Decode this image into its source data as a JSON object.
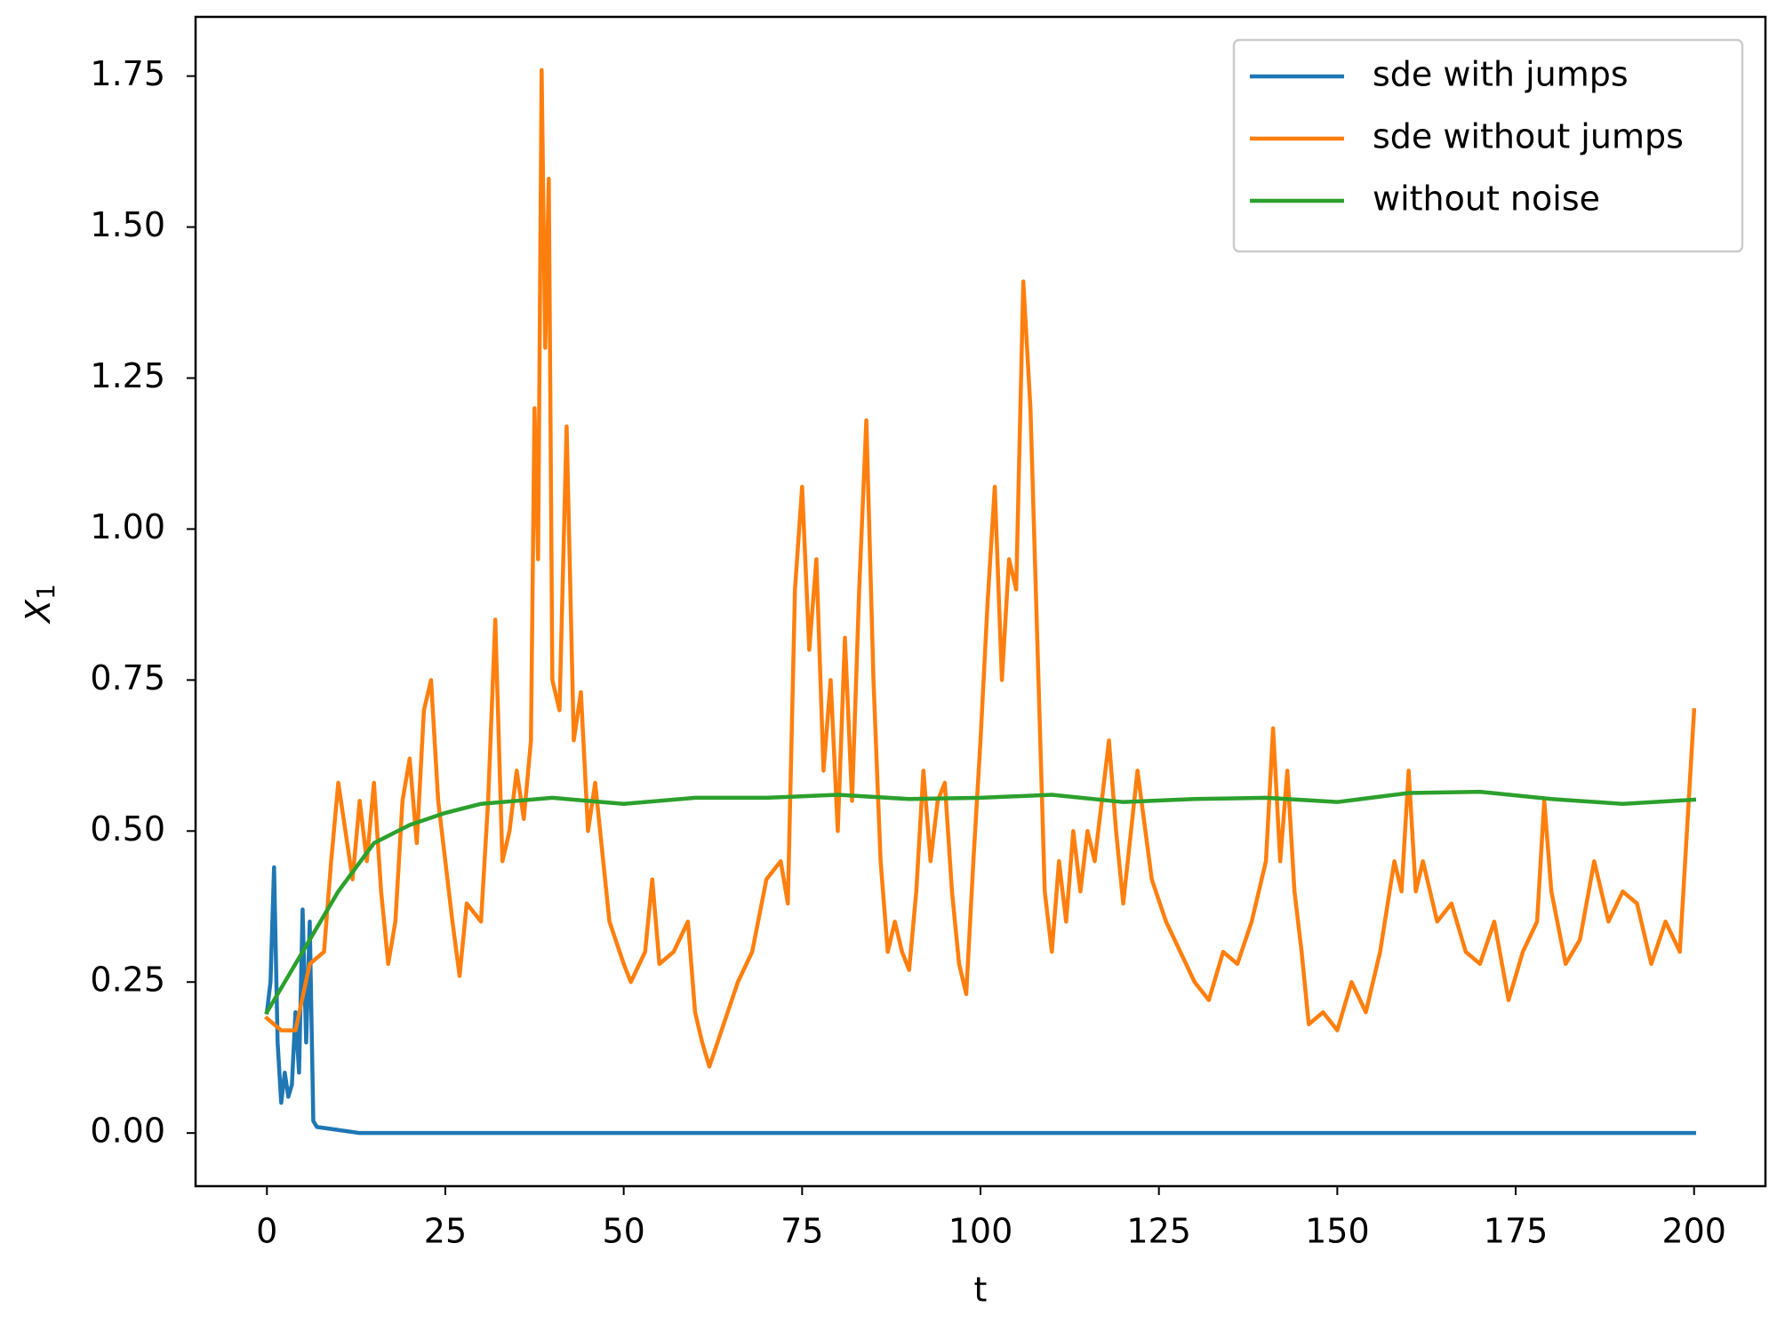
{
  "chart_data": {
    "type": "line",
    "x_label": "t",
    "y_label": "X",
    "y_label_subscript": "1",
    "xlim": [
      -10,
      210
    ],
    "ylim": [
      -0.088,
      1.848
    ],
    "xticks": [
      0,
      25,
      50,
      75,
      100,
      125,
      150,
      175,
      200
    ],
    "yticks": [
      {
        "value": 0,
        "label": "0.00"
      },
      0.25,
      {
        "value": 0.5,
        "label": "0.50"
      },
      0.75,
      {
        "value": 1,
        "label": "1.00"
      },
      1.25,
      {
        "value": 1.5,
        "label": "1.50"
      },
      1.75
    ],
    "legend": "upper right",
    "series": [
      {
        "name": "sde with jumps",
        "color": "#1f77b4",
        "x": [
          0,
          0.5,
          1,
          1.5,
          2,
          2.5,
          3,
          3.5,
          4,
          4.5,
          5,
          5.5,
          6,
          6.5,
          7,
          10,
          13,
          200
        ],
        "values": [
          0.2,
          0.25,
          0.44,
          0.15,
          0.05,
          0.1,
          0.06,
          0.08,
          0.2,
          0.1,
          0.37,
          0.15,
          0.35,
          0.02,
          0.01,
          0.005,
          0,
          0
        ]
      },
      {
        "name": "sde without jumps",
        "color": "#ff7f0e",
        "x": [
          0,
          2,
          4,
          6,
          8,
          9,
          10,
          11,
          12,
          13,
          14,
          15,
          16,
          17,
          18,
          19,
          20,
          21,
          22,
          23,
          24,
          25,
          26,
          27,
          28,
          30,
          31,
          32,
          33,
          34,
          35,
          36,
          37,
          37.5,
          38,
          38.5,
          39,
          39.5,
          40,
          41,
          42,
          43,
          44,
          45,
          46,
          48,
          50,
          51,
          53,
          54,
          55,
          57,
          59,
          60,
          61,
          62,
          64,
          66,
          68,
          70,
          72,
          73,
          74,
          75,
          76,
          77,
          78,
          79,
          80,
          81,
          82,
          83,
          84,
          85,
          86,
          87,
          88,
          89,
          90,
          91,
          92,
          93,
          94,
          95,
          96,
          97,
          98,
          99,
          100,
          101,
          102,
          103,
          104,
          105,
          106,
          107,
          108,
          109,
          110,
          111,
          112,
          113,
          114,
          115,
          116,
          117,
          118,
          119,
          120,
          122,
          124,
          126,
          128,
          130,
          132,
          134,
          136,
          138,
          140,
          141,
          142,
          143,
          144,
          145,
          146,
          148,
          150,
          152,
          154,
          156,
          158,
          159,
          160,
          161,
          162,
          164,
          166,
          168,
          170,
          172,
          174,
          176,
          178,
          179,
          180,
          182,
          184,
          186,
          188,
          190,
          192,
          194,
          196,
          198,
          199,
          200
        ],
        "values": [
          0.19,
          0.17,
          0.17,
          0.28,
          0.3,
          0.45,
          0.58,
          0.5,
          0.42,
          0.55,
          0.45,
          0.58,
          0.4,
          0.28,
          0.35,
          0.55,
          0.62,
          0.48,
          0.7,
          0.75,
          0.55,
          0.45,
          0.35,
          0.26,
          0.38,
          0.35,
          0.55,
          0.85,
          0.45,
          0.5,
          0.6,
          0.52,
          0.65,
          1.2,
          0.95,
          1.76,
          1.3,
          1.58,
          0.75,
          0.7,
          1.17,
          0.65,
          0.73,
          0.5,
          0.58,
          0.35,
          0.28,
          0.25,
          0.3,
          0.42,
          0.28,
          0.3,
          0.35,
          0.2,
          0.15,
          0.11,
          0.18,
          0.25,
          0.3,
          0.42,
          0.45,
          0.38,
          0.9,
          1.07,
          0.8,
          0.95,
          0.6,
          0.75,
          0.5,
          0.82,
          0.55,
          0.9,
          1.18,
          0.75,
          0.45,
          0.3,
          0.35,
          0.3,
          0.27,
          0.4,
          0.6,
          0.45,
          0.55,
          0.58,
          0.4,
          0.28,
          0.23,
          0.45,
          0.65,
          0.88,
          1.07,
          0.75,
          0.95,
          0.9,
          1.41,
          1.2,
          0.8,
          0.4,
          0.3,
          0.45,
          0.35,
          0.5,
          0.4,
          0.5,
          0.45,
          0.55,
          0.65,
          0.5,
          0.38,
          0.6,
          0.42,
          0.35,
          0.3,
          0.25,
          0.22,
          0.3,
          0.28,
          0.35,
          0.45,
          0.67,
          0.45,
          0.6,
          0.4,
          0.3,
          0.18,
          0.2,
          0.17,
          0.25,
          0.2,
          0.3,
          0.45,
          0.4,
          0.6,
          0.4,
          0.45,
          0.35,
          0.38,
          0.3,
          0.28,
          0.35,
          0.22,
          0.3,
          0.35,
          0.55,
          0.4,
          0.28,
          0.32,
          0.45,
          0.35,
          0.4,
          0.38,
          0.28,
          0.35,
          0.3,
          0.5,
          0.7
        ]
      },
      {
        "name": "without noise",
        "color": "#2ca02c",
        "x": [
          0,
          5,
          10,
          15,
          20,
          25,
          30,
          35,
          40,
          50,
          60,
          70,
          80,
          90,
          100,
          110,
          120,
          130,
          140,
          150,
          160,
          170,
          180,
          190,
          200
        ],
        "values": [
          0.2,
          0.3,
          0.4,
          0.48,
          0.51,
          0.53,
          0.545,
          0.55,
          0.555,
          0.545,
          0.555,
          0.555,
          0.56,
          0.553,
          0.555,
          0.56,
          0.548,
          0.553,
          0.555,
          0.548,
          0.563,
          0.565,
          0.553,
          0.545,
          0.552
        ]
      }
    ]
  }
}
